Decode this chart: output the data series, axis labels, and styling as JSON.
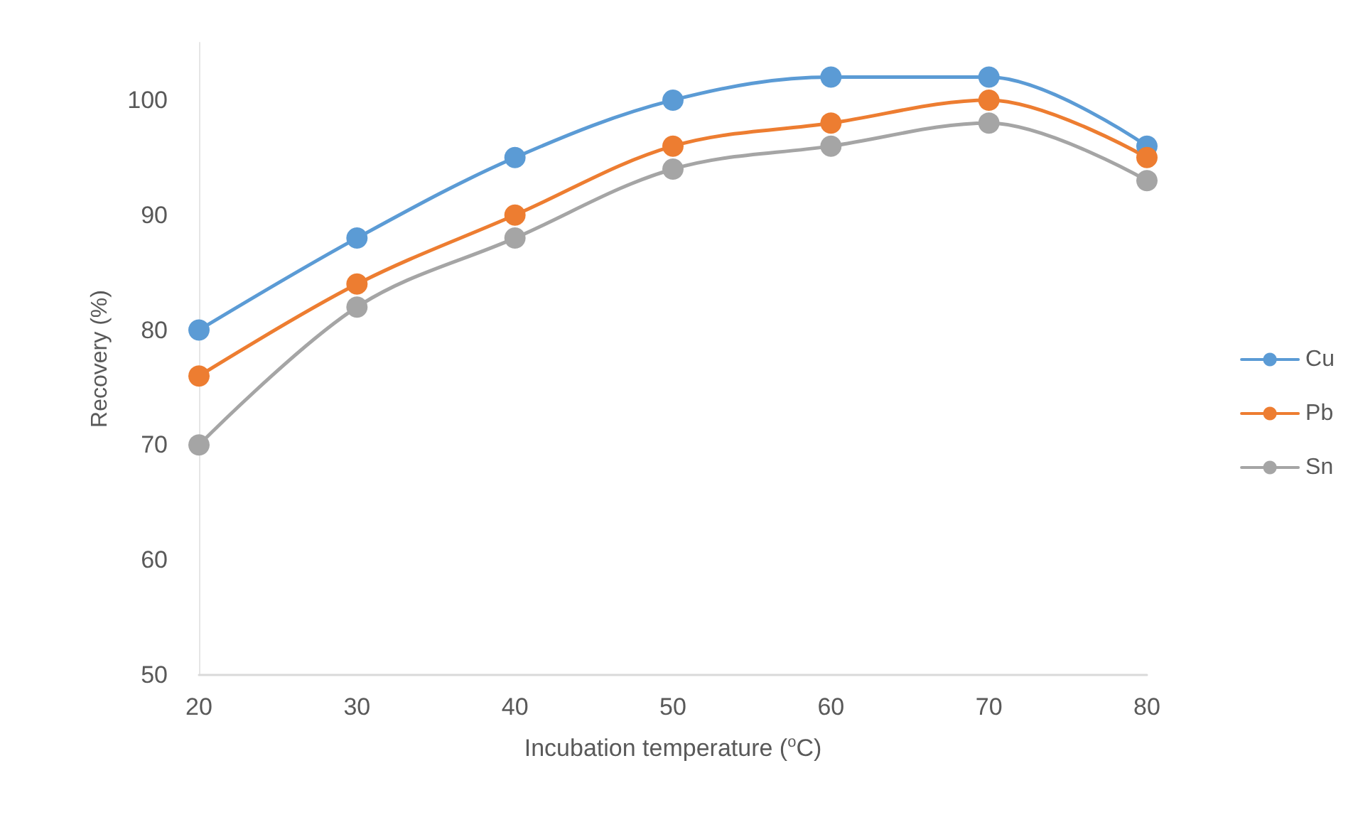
{
  "chart_data": {
    "type": "line",
    "xlabel": "Incubation temperature ($^{o}$C)",
    "ylabel": "Recovery (%)",
    "x": [
      20,
      30,
      40,
      50,
      60,
      70,
      80
    ],
    "series": [
      {
        "name": "Cu",
        "color": "#5b9bd5",
        "values": [
          80,
          88,
          95,
          100,
          102,
          102,
          96
        ]
      },
      {
        "name": "Pb",
        "color": "#ed7d31",
        "values": [
          76,
          84,
          90,
          96,
          98,
          100,
          95
        ]
      },
      {
        "name": "Sn",
        "color": "#a5a5a5",
        "values": [
          70,
          82,
          88,
          94,
          96,
          98,
          93
        ]
      }
    ],
    "xlim": [
      20,
      80
    ],
    "xticks": [
      20,
      30,
      40,
      50,
      60,
      70,
      80
    ],
    "ylim": [
      50,
      105
    ],
    "yticks": [
      50,
      60,
      70,
      80,
      90,
      100
    ],
    "grid": false,
    "legend": "right",
    "marker": "circle",
    "line_style": "solid"
  }
}
